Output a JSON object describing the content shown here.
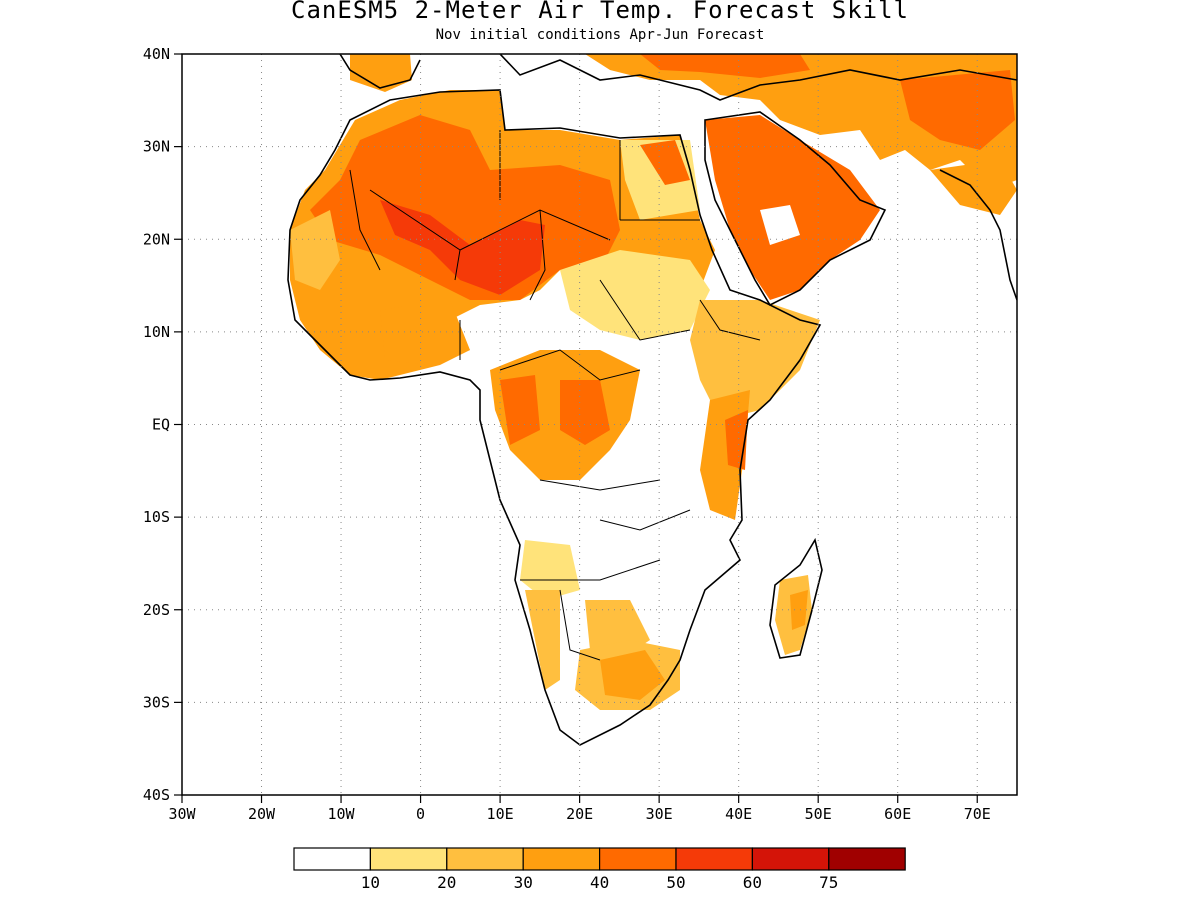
{
  "title": "CanESM5 2-Meter Air Temp. Forecast Skill",
  "subtitle": "Nov initial conditions  Apr-Jun Forecast",
  "map": {
    "lon_range": [
      -30,
      75
    ],
    "lat_range": [
      -40,
      40
    ],
    "lat_ticks": [
      "40N",
      "30N",
      "20N",
      "10N",
      "EQ",
      "10S",
      "20S",
      "30S",
      "40S"
    ],
    "lon_ticks": [
      "30W",
      "20W",
      "10W",
      "0",
      "10E",
      "20E",
      "30E",
      "40E",
      "50E",
      "60E",
      "70E"
    ],
    "gridlines": "dotted"
  },
  "colorbar": {
    "labels": [
      "10",
      "20",
      "30",
      "40",
      "50",
      "60",
      "75"
    ],
    "colors": [
      "#ffffff",
      "#ffe37a",
      "#ffbf3f",
      "#ff9f10",
      "#ff6a00",
      "#f53a08",
      "#d41408",
      "#a00000"
    ]
  },
  "skill_regions": [
    {
      "name": "north-africa-core",
      "level": 4,
      "color": "#ff6a00"
    },
    {
      "name": "arabia",
      "level": 4,
      "color": "#ff6a00"
    },
    {
      "name": "west-africa",
      "level": 3,
      "color": "#ff9f10"
    },
    {
      "name": "central-africa",
      "level": 4,
      "color": "#ff6a00"
    },
    {
      "name": "east-africa",
      "level": 3,
      "color": "#ff9f10"
    },
    {
      "name": "southern-africa",
      "level": 2,
      "color": "#ffbf3f"
    },
    {
      "name": "madagascar",
      "level": 3,
      "color": "#ff9f10"
    }
  ]
}
